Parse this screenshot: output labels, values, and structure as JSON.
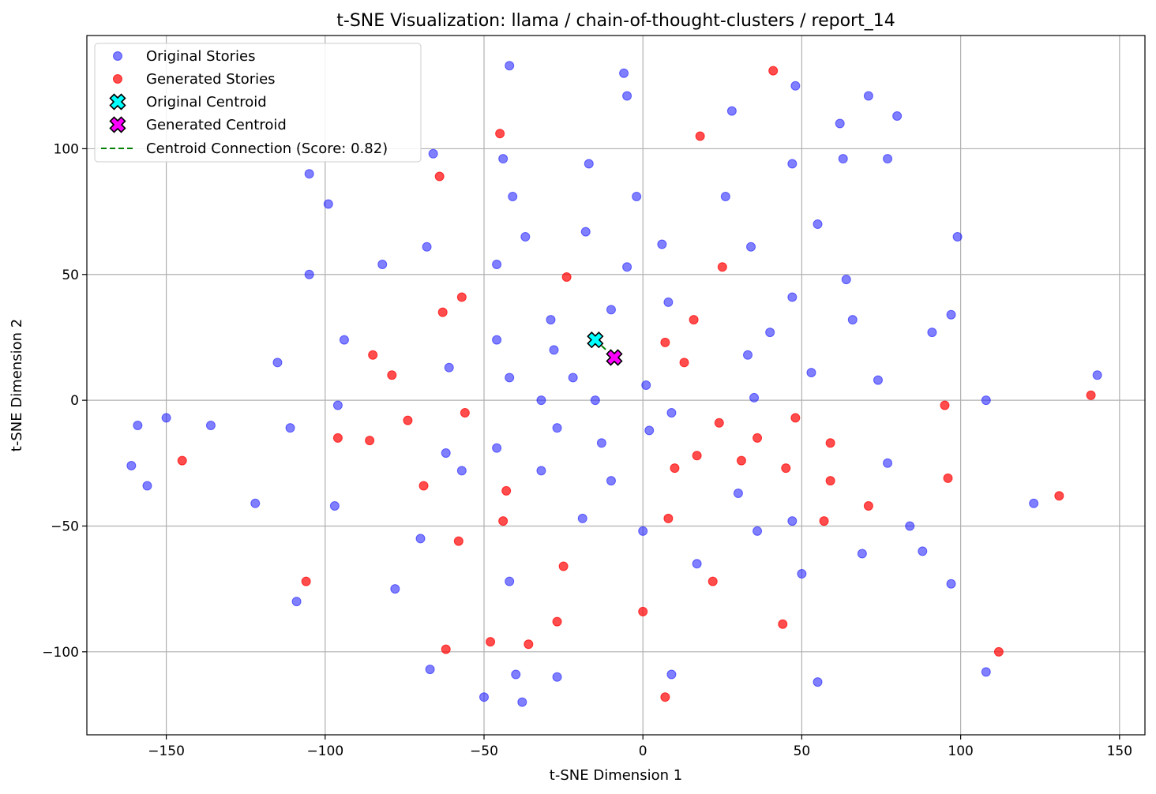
{
  "chart_data": {
    "type": "scatter",
    "title": "t-SNE Visualization: llama / chain-of-thought-clusters / report_14",
    "xlabel": "t-SNE Dimension 1",
    "ylabel": "t-SNE Dimension 2",
    "xlim": [
      -175,
      158
    ],
    "ylim": [
      -133,
      145
    ],
    "xticks": [
      -150,
      -100,
      -50,
      0,
      50,
      100,
      150
    ],
    "yticks": [
      -100,
      -50,
      0,
      50,
      100
    ],
    "xtick_labels": [
      "−150",
      "−100",
      "−50",
      "0",
      "50",
      "100",
      "150"
    ],
    "ytick_labels": [
      "−100",
      "−50",
      "0",
      "50",
      "100"
    ],
    "grid": true,
    "legend_position": "top-left",
    "legend": [
      {
        "label": "Original Stories",
        "marker": "circle",
        "color": "#0000ff"
      },
      {
        "label": "Generated Stories",
        "marker": "circle",
        "color": "#ff0000"
      },
      {
        "label": "Original Centroid",
        "marker": "X",
        "color": "#00ffff"
      },
      {
        "label": "Generated Centroid",
        "marker": "X",
        "color": "#ff00ff"
      },
      {
        "label": "Centroid Connection (Score: 0.82)",
        "marker": "dashed-line",
        "color": "#008000"
      }
    ],
    "series": [
      {
        "name": "Original Stories",
        "color": "#0000ff",
        "alpha": 0.5,
        "points": [
          [
            -42,
            133
          ],
          [
            -6,
            130
          ],
          [
            -5,
            121
          ],
          [
            48,
            125
          ],
          [
            71,
            121
          ],
          [
            80,
            113
          ],
          [
            28,
            115
          ],
          [
            62,
            110
          ],
          [
            -105,
            90
          ],
          [
            -66,
            98
          ],
          [
            -44,
            96
          ],
          [
            -17,
            94
          ],
          [
            47,
            94
          ],
          [
            63,
            96
          ],
          [
            77,
            96
          ],
          [
            -99,
            78
          ],
          [
            -41,
            81
          ],
          [
            -2,
            81
          ],
          [
            26,
            81
          ],
          [
            -68,
            61
          ],
          [
            -37,
            65
          ],
          [
            -18,
            67
          ],
          [
            6,
            62
          ],
          [
            34,
            61
          ],
          [
            55,
            70
          ],
          [
            99,
            65
          ],
          [
            -105,
            50
          ],
          [
            -82,
            54
          ],
          [
            -46,
            54
          ],
          [
            -5,
            53
          ],
          [
            64,
            48
          ],
          [
            -10,
            36
          ],
          [
            8,
            39
          ],
          [
            47,
            41
          ],
          [
            97,
            34
          ],
          [
            91,
            27
          ],
          [
            66,
            32
          ],
          [
            40,
            27
          ],
          [
            -29,
            32
          ],
          [
            -28,
            20
          ],
          [
            -46,
            24
          ],
          [
            -94,
            24
          ],
          [
            -115,
            15
          ],
          [
            -61,
            13
          ],
          [
            -42,
            9
          ],
          [
            -22,
            9
          ],
          [
            33,
            18
          ],
          [
            53,
            11
          ],
          [
            74,
            8
          ],
          [
            143,
            10
          ],
          [
            -32,
            0
          ],
          [
            -15,
            0
          ],
          [
            1,
            6
          ],
          [
            35,
            1
          ],
          [
            108,
            0
          ],
          [
            -150,
            -7
          ],
          [
            -159,
            -10
          ],
          [
            -136,
            -10
          ],
          [
            -111,
            -11
          ],
          [
            -96,
            -2
          ],
          [
            -27,
            -11
          ],
          [
            2,
            -12
          ],
          [
            9,
            -5
          ],
          [
            -62,
            -21
          ],
          [
            -46,
            -19
          ],
          [
            -13,
            -17
          ],
          [
            -161,
            -26
          ],
          [
            -156,
            -34
          ],
          [
            -57,
            -28
          ],
          [
            -32,
            -28
          ],
          [
            -10,
            -32
          ],
          [
            30,
            -37
          ],
          [
            77,
            -25
          ],
          [
            -122,
            -41
          ],
          [
            -97,
            -42
          ],
          [
            -19,
            -47
          ],
          [
            0,
            -52
          ],
          [
            36,
            -52
          ],
          [
            47,
            -48
          ],
          [
            84,
            -50
          ],
          [
            123,
            -41
          ],
          [
            -70,
            -55
          ],
          [
            17,
            -65
          ],
          [
            69,
            -61
          ],
          [
            88,
            -60
          ],
          [
            50,
            -69
          ],
          [
            -78,
            -75
          ],
          [
            -42,
            -72
          ],
          [
            97,
            -73
          ],
          [
            -109,
            -80
          ],
          [
            -67,
            -107
          ],
          [
            -40,
            -109
          ],
          [
            -27,
            -110
          ],
          [
            9,
            -109
          ],
          [
            55,
            -112
          ],
          [
            108,
            -108
          ],
          [
            -50,
            -118
          ],
          [
            -38,
            -120
          ]
        ]
      },
      {
        "name": "Generated Stories",
        "color": "#ff0000",
        "alpha": 0.7,
        "points": [
          [
            41,
            131
          ],
          [
            -45,
            106
          ],
          [
            18,
            105
          ],
          [
            -64,
            89
          ],
          [
            -24,
            49
          ],
          [
            25,
            53
          ],
          [
            -57,
            41
          ],
          [
            -63,
            35
          ],
          [
            16,
            32
          ],
          [
            7,
            23
          ],
          [
            13,
            15
          ],
          [
            -85,
            18
          ],
          [
            -79,
            10
          ],
          [
            141,
            2
          ],
          [
            -74,
            -8
          ],
          [
            -56,
            -5
          ],
          [
            -96,
            -15
          ],
          [
            -86,
            -16
          ],
          [
            24,
            -9
          ],
          [
            48,
            -7
          ],
          [
            95,
            -2
          ],
          [
            -145,
            -24
          ],
          [
            17,
            -22
          ],
          [
            31,
            -24
          ],
          [
            36,
            -15
          ],
          [
            59,
            -17
          ],
          [
            10,
            -27
          ],
          [
            45,
            -27
          ],
          [
            -69,
            -34
          ],
          [
            -43,
            -36
          ],
          [
            59,
            -32
          ],
          [
            96,
            -31
          ],
          [
            131,
            -38
          ],
          [
            71,
            -42
          ],
          [
            -44,
            -48
          ],
          [
            8,
            -47
          ],
          [
            57,
            -48
          ],
          [
            -58,
            -56
          ],
          [
            -25,
            -66
          ],
          [
            -106,
            -72
          ],
          [
            22,
            -72
          ],
          [
            0,
            -84
          ],
          [
            -27,
            -88
          ],
          [
            44,
            -89
          ],
          [
            -48,
            -96
          ],
          [
            -36,
            -97
          ],
          [
            -62,
            -99
          ],
          [
            112,
            -100
          ],
          [
            7,
            -118
          ]
        ]
      }
    ],
    "original_centroid": [
      -15,
      24
    ],
    "generated_centroid": [
      -9,
      17
    ],
    "connection": {
      "from": [
        -15,
        24
      ],
      "to": [
        -9,
        17
      ],
      "style": "dashed",
      "color": "#008000",
      "score": 0.82
    }
  }
}
